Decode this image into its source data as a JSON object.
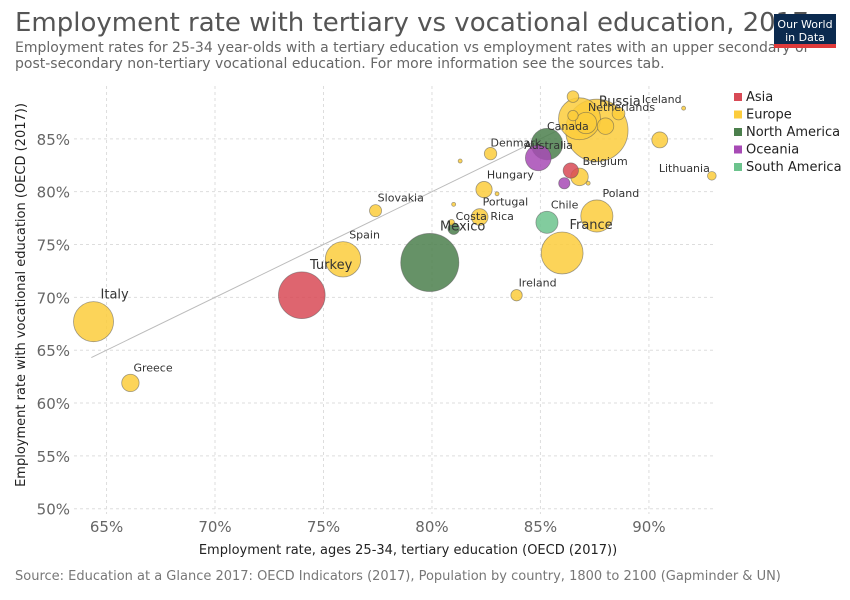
{
  "header": {
    "title": "Employment rate with tertiary vs vocational education, 2017",
    "subtitle": "Employment rates for 25-34 year-olds with a tertiary education vs employment rates with an upper secondary or post-secondary non-tertiary vocational education. For more information see the sources tab.",
    "logo_line1": "Our World",
    "logo_line2": "in Data"
  },
  "footer": {
    "source": "Source: Education at a Glance 2017: OECD Indicators (2017), Population by country, 1800 to 2100 (Gapminder & UN)"
  },
  "chart_data": {
    "type": "scatter",
    "title": "Employment rate with tertiary vs vocational education, 2017",
    "xlabel": "Employment rate, ages 25-34, tertiary education (OECD (2017))",
    "ylabel": "Employment rate with vocational education (OECD (2017))",
    "xlim": [
      63.5,
      93
    ],
    "ylim": [
      49.5,
      90
    ],
    "x_ticks": [
      65,
      70,
      75,
      80,
      85,
      90
    ],
    "y_ticks": [
      50,
      55,
      60,
      65,
      70,
      75,
      80,
      85
    ],
    "x_tick_labels": [
      "65%",
      "70%",
      "75%",
      "80%",
      "85%",
      "90%"
    ],
    "y_tick_labels": [
      "50%",
      "55%",
      "60%",
      "65%",
      "70%",
      "75%",
      "80%",
      "85%"
    ],
    "grid": true,
    "legend_position": "right",
    "trend_line": {
      "x": [
        64.3,
        88.7
      ],
      "y": [
        64.3,
        88.7
      ]
    },
    "colors": {
      "Asia": "#d84a56",
      "Europe": "#fccc3c",
      "North America": "#4b7f4c",
      "Oceania": "#a74ab5",
      "South America": "#6cc38d"
    },
    "legend": [
      "Asia",
      "Europe",
      "North America",
      "Oceania",
      "South America"
    ],
    "points": [
      {
        "label": "Russia",
        "x": 87.6,
        "y": 85.8,
        "region": "Europe",
        "size": 144
      },
      {
        "label": "Netherlands",
        "x": 87.1,
        "y": 86.5,
        "region": "Europe",
        "size": 17
      },
      {
        "label": "",
        "x": 86.8,
        "y": 86.9,
        "region": "Europe",
        "size": 65
      },
      {
        "label": "",
        "x": 88.0,
        "y": 86.2,
        "region": "Europe",
        "size": 10
      },
      {
        "label": "",
        "x": 86.5,
        "y": 89.0,
        "region": "Europe",
        "size": 5
      },
      {
        "label": "",
        "x": 86.5,
        "y": 87.2,
        "region": "Europe",
        "size": 4
      },
      {
        "label": "",
        "x": 88.6,
        "y": 87.4,
        "region": "Europe",
        "size": 6
      },
      {
        "label": "Iceland",
        "x": 91.6,
        "y": 87.9,
        "region": "Europe",
        "size": 0.4
      },
      {
        "label": "Lithuania",
        "x": 92.9,
        "y": 81.5,
        "region": "Europe",
        "size": 2.8
      },
      {
        "label": "",
        "x": 90.5,
        "y": 84.9,
        "region": "Europe",
        "size": 9.4
      },
      {
        "label": "Canada",
        "x": 85.3,
        "y": 84.5,
        "region": "North America",
        "size": 36.6
      },
      {
        "label": "Australia",
        "x": 84.9,
        "y": 83.2,
        "region": "Oceania",
        "size": 24.5
      },
      {
        "label": "Denmark",
        "x": 82.7,
        "y": 83.6,
        "region": "Europe",
        "size": 5.7
      },
      {
        "label": "",
        "x": 81.3,
        "y": 82.9,
        "region": "Europe",
        "size": 0.6
      },
      {
        "label": "Belgium",
        "x": 86.8,
        "y": 81.4,
        "region": "Europe",
        "size": 11.4
      },
      {
        "label": "",
        "x": 86.4,
        "y": 82.0,
        "region": "Asia",
        "size": 8.7
      },
      {
        "label": "",
        "x": 87.2,
        "y": 80.8,
        "region": "Europe",
        "size": 0.6
      },
      {
        "label": "",
        "x": 86.1,
        "y": 80.8,
        "region": "Oceania",
        "size": 4.7
      },
      {
        "label": "Hungary",
        "x": 82.4,
        "y": 80.2,
        "region": "Europe",
        "size": 9.8
      },
      {
        "label": "",
        "x": 83.0,
        "y": 79.8,
        "region": "Europe",
        "size": 0.2
      },
      {
        "label": "",
        "x": 81.0,
        "y": 78.8,
        "region": "Europe",
        "size": 0.4
      },
      {
        "label": "Slovakia",
        "x": 77.4,
        "y": 78.2,
        "region": "Europe",
        "size": 5.4
      },
      {
        "label": "Portugal",
        "x": 82.2,
        "y": 77.6,
        "region": "Europe",
        "size": 10.3
      },
      {
        "label": "",
        "x": 80.9,
        "y": 77.1,
        "region": "Europe",
        "size": 1.3
      },
      {
        "label": "Costa Rica",
        "x": 81.0,
        "y": 76.5,
        "region": "North America",
        "size": 4.9
      },
      {
        "label": "Chile",
        "x": 85.3,
        "y": 77.1,
        "region": "South America",
        "size": 18.1
      },
      {
        "label": "Poland",
        "x": 87.6,
        "y": 77.7,
        "region": "Europe",
        "size": 38.2
      },
      {
        "label": "France",
        "x": 86.0,
        "y": 74.2,
        "region": "Europe",
        "size": 64.9
      },
      {
        "label": "Mexico",
        "x": 79.9,
        "y": 73.3,
        "region": "North America",
        "size": 124.8
      },
      {
        "label": "Spain",
        "x": 75.9,
        "y": 73.6,
        "region": "Europe",
        "size": 46.4
      },
      {
        "label": "Turkey",
        "x": 74.0,
        "y": 70.2,
        "region": "Asia",
        "size": 80.7
      },
      {
        "label": "Ireland",
        "x": 83.9,
        "y": 70.2,
        "region": "Europe",
        "size": 4.8
      },
      {
        "label": "Italy",
        "x": 64.4,
        "y": 67.7,
        "region": "Europe",
        "size": 59.4
      },
      {
        "label": "Greece",
        "x": 66.1,
        "y": 61.9,
        "region": "Europe",
        "size": 11.2
      }
    ]
  }
}
